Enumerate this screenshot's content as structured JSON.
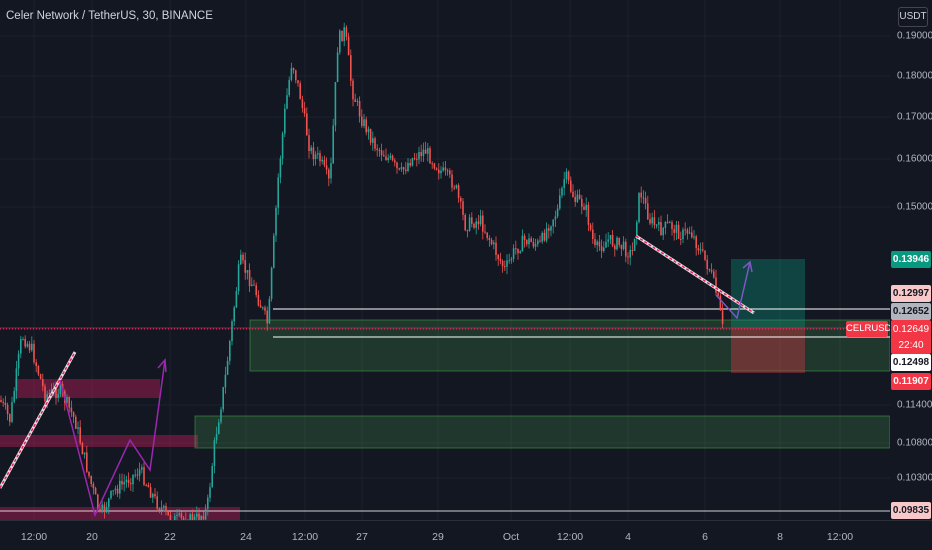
{
  "header": {
    "title": "Celer Network / TetherUS, 30, BINANCE"
  },
  "price_axis": {
    "unit": "USDT",
    "ticks": [
      "0.19000",
      "0.18000",
      "0.17000",
      "0.16000",
      "0.15000",
      "0.11400",
      "0.10800",
      "0.10300"
    ]
  },
  "badges": {
    "target": "0.13946",
    "stop": "0.12997",
    "entry": "0.12652",
    "last": "0.12649",
    "countdown": "22:40",
    "level1": "0.12498",
    "level2": "0.11907",
    "level3": "0.09835"
  },
  "symbol_label": "CELRUSDT",
  "time_axis": [
    "12:00",
    "20",
    "22",
    "24",
    "12:00",
    "27",
    "29",
    "Oct",
    "12:00",
    "4",
    "6",
    "8",
    "12:00"
  ],
  "colors": {
    "background": "#131722",
    "bull": "#26a69a",
    "bear": "#ef5350",
    "target_badge": "#089981",
    "last_badge": "#f23645",
    "demand_zone": "#4caf50",
    "supply_zone": "#e91e63"
  }
}
